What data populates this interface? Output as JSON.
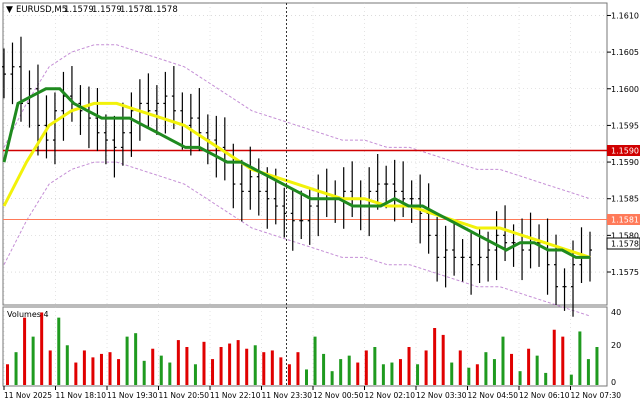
{
  "header": {
    "symbol_label": "EURUSD,M5",
    "ohlc_values": [
      "1.1579",
      "1.1579",
      "1.1578",
      "1.1578"
    ]
  },
  "volume_panel": {
    "label": "Volumes 4",
    "y_ticks": [
      "40",
      "20",
      "0"
    ]
  },
  "price_levels": {
    "line_1590": "1.1590",
    "line_1581": "1.1581",
    "current_price": "1.1578"
  },
  "colors": {
    "background": "#ffffff",
    "grid": "#c8c8c8",
    "bar": "#000000",
    "sma_fast": "#1f8a1f",
    "sma_slow": "#f2f20a",
    "envelope": "#c58fd6",
    "level_1590": "#d00000",
    "level_1581": "#ff7a59",
    "volume_up": "#1f9a1f",
    "volume_down": "#e00000"
  },
  "chart_data": {
    "type": "ohlc",
    "symbol": "EURUSD",
    "timeframe": "M5",
    "y_ticks": [
      "1.1610",
      "1.1605",
      "1.1600",
      "1.1595",
      "1.1590",
      "1.1585",
      "1.1580",
      "1.1575"
    ],
    "x_labels": [
      "11 Nov 2025",
      "11 Nov 18:10",
      "11 Nov 19:30",
      "11 Nov 20:50",
      "11 Nov 22:10",
      "11 Nov 23:30",
      "12 Nov 00:50",
      "12 Nov 02:10",
      "12 Nov 03:30",
      "12 Nov 04:50",
      "12 Nov 06:10",
      "12 Nov 07:30"
    ],
    "ylim": [
      1.15705,
      1.16117
    ],
    "close": [
      1.1602,
      1.1603,
      1.1598,
      1.16,
      1.1595,
      1.1593,
      1.1597,
      1.1599,
      1.1598,
      1.1597,
      1.1596,
      1.1594,
      1.1593,
      1.1592,
      1.1594,
      1.1597,
      1.1598,
      1.1597,
      1.1598,
      1.1599,
      1.1597,
      1.1595,
      1.1596,
      1.1594,
      1.1593,
      1.1592,
      1.159,
      1.1587,
      1.1586,
      1.1588,
      1.1586,
      1.1585,
      1.1584,
      1.1583,
      1.1582,
      1.1582,
      1.1584,
      1.1585,
      1.1585,
      1.1585,
      1.1586,
      1.1585,
      1.1584,
      1.1586,
      1.1587,
      1.1587,
      1.1586,
      1.1585,
      1.1585,
      1.1583,
      1.158,
      1.1577,
      1.1578,
      1.1577,
      1.1577,
      1.1576,
      1.1577,
      1.1578,
      1.158,
      1.1579,
      1.1579,
      1.1578,
      1.1579,
      1.1579,
      1.1576,
      1.1573,
      1.1573,
      1.1576,
      1.1577,
      1.1578
    ],
    "sma_fast": [
      1.159,
      1.1598,
      1.1599,
      1.16,
      1.16,
      1.1598,
      1.1597,
      1.1596,
      1.1596,
      1.1596,
      1.1595,
      1.1594,
      1.1593,
      1.1592,
      1.1592,
      1.1591,
      1.159,
      1.159,
      1.1589,
      1.1588,
      1.1587,
      1.1586,
      1.1585,
      1.1585,
      1.1585,
      1.1584,
      1.1584,
      1.1584,
      1.1585,
      1.1584,
      1.1584,
      1.1583,
      1.1582,
      1.1581,
      1.158,
      1.1579,
      1.1578,
      1.1579,
      1.1579,
      1.1578,
      1.1578,
      1.1577,
      1.1577
    ],
    "sma_slow": [
      1.1584,
      1.159,
      1.1595,
      1.1597,
      1.1598,
      1.1598,
      1.1597,
      1.1596,
      1.1595,
      1.1593,
      1.1591,
      1.1589,
      1.1588,
      1.1587,
      1.1586,
      1.1585,
      1.1585,
      1.1584,
      1.1584,
      1.1583,
      1.1582,
      1.1581,
      1.1581,
      1.158,
      1.1579,
      1.1578,
      1.1577
    ],
    "volume_ylim": [
      0,
      44
    ],
    "volume_ticks": [
      40,
      20,
      0
    ]
  }
}
